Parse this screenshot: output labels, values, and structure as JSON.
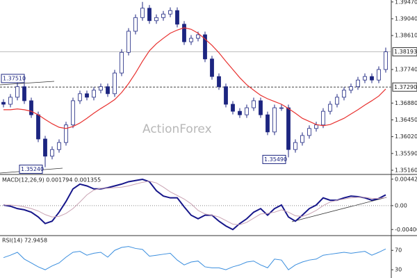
{
  "chart_data": [
    {
      "type": "candlestick",
      "watermark": "ActionForex",
      "color": "#1c2580",
      "open": [
        1.369,
        1.3685,
        1.3703,
        1.373,
        1.3694,
        1.3658,
        1.3596,
        1.3552,
        1.3569,
        1.3587,
        1.3632,
        1.3694,
        1.3712,
        1.3703,
        1.3721,
        1.373,
        1.3712,
        1.3765,
        1.3818,
        1.3872,
        1.3907,
        1.3931,
        1.3899,
        1.3907,
        1.3916,
        1.3925,
        1.389,
        1.3845,
        1.3854,
        1.3863,
        1.3801,
        1.3756,
        1.373,
        1.3685,
        1.3667,
        1.3658,
        1.3676,
        1.3694,
        1.3658,
        1.3614,
        1.3676,
        1.3676,
        1.3569,
        1.3587,
        1.3605,
        1.3623,
        1.3632,
        1.3667,
        1.3685,
        1.3703,
        1.3721,
        1.373,
        1.3747,
        1.3756,
        1.3747,
        1.3774
      ],
      "high": [
        1.3698,
        1.3711,
        1.3751,
        1.3738,
        1.3702,
        1.3666,
        1.3604,
        1.3577,
        1.3595,
        1.364,
        1.3702,
        1.372,
        1.372,
        1.3729,
        1.3738,
        1.3738,
        1.3773,
        1.3826,
        1.388,
        1.3915,
        1.3947,
        1.3939,
        1.3915,
        1.3924,
        1.3933,
        1.3933,
        1.3898,
        1.3862,
        1.3871,
        1.3871,
        1.3809,
        1.3764,
        1.3738,
        1.3693,
        1.3675,
        1.3684,
        1.3702,
        1.3702,
        1.3666,
        1.3684,
        1.3684,
        1.3684,
        1.3595,
        1.3613,
        1.3631,
        1.364,
        1.3675,
        1.3693,
        1.3711,
        1.3729,
        1.3738,
        1.3755,
        1.3764,
        1.3764,
        1.3782,
        1.383
      ],
      "low": [
        1.3677,
        1.3677,
        1.3695,
        1.3686,
        1.365,
        1.3588,
        1.3524,
        1.3544,
        1.3561,
        1.3579,
        1.3624,
        1.3686,
        1.3695,
        1.3695,
        1.3713,
        1.3704,
        1.3704,
        1.3757,
        1.381,
        1.3864,
        1.3899,
        1.3891,
        1.3891,
        1.3899,
        1.3908,
        1.3882,
        1.3837,
        1.3837,
        1.3846,
        1.3793,
        1.3748,
        1.3722,
        1.3677,
        1.3659,
        1.365,
        1.365,
        1.3668,
        1.365,
        1.3606,
        1.3606,
        1.3668,
        1.3549,
        1.3561,
        1.3579,
        1.3597,
        1.3615,
        1.3624,
        1.3659,
        1.3677,
        1.3695,
        1.3713,
        1.3722,
        1.3739,
        1.3739,
        1.3739,
        1.3766
      ],
      "close": [
        1.3685,
        1.3703,
        1.373,
        1.3694,
        1.3658,
        1.3596,
        1.3552,
        1.3569,
        1.3587,
        1.3632,
        1.3694,
        1.3712,
        1.3703,
        1.3721,
        1.373,
        1.3712,
        1.3765,
        1.3818,
        1.3872,
        1.3907,
        1.3931,
        1.3899,
        1.3907,
        1.3916,
        1.3925,
        1.389,
        1.3845,
        1.3854,
        1.3863,
        1.3801,
        1.3756,
        1.373,
        1.3685,
        1.3667,
        1.3658,
        1.3676,
        1.3694,
        1.3658,
        1.3614,
        1.3676,
        1.3676,
        1.3569,
        1.3587,
        1.3605,
        1.3623,
        1.3632,
        1.3667,
        1.3685,
        1.3703,
        1.3721,
        1.373,
        1.3747,
        1.3756,
        1.3747,
        1.3774,
        1.38193
      ],
      "ma": {
        "color": "#e8312f",
        "values": [
          1.3671,
          1.3671,
          1.3673,
          1.3671,
          1.3667,
          1.3658,
          1.3646,
          1.3635,
          1.3626,
          1.3623,
          1.3628,
          1.3637,
          1.3649,
          1.3662,
          1.3674,
          1.3685,
          1.3697,
          1.3715,
          1.3738,
          1.3765,
          1.3795,
          1.3822,
          1.384,
          1.3854,
          1.3867,
          1.3875,
          1.3881,
          1.3877,
          1.3867,
          1.3852,
          1.3836,
          1.3817,
          1.3795,
          1.3774,
          1.3753,
          1.3735,
          1.3721,
          1.3708,
          1.3699,
          1.3692,
          1.3685,
          1.3674,
          1.3662,
          1.3649,
          1.3641,
          1.3633,
          1.363,
          1.3633,
          1.3641,
          1.3649,
          1.366,
          1.3671,
          1.3683,
          1.3694,
          1.3706,
          1.3724
        ]
      },
      "ylim": [
        1.3507,
        1.3952
      ],
      "yticks": [
        {
          "value": 1.3947,
          "label": "1.39470"
        },
        {
          "value": 1.3904,
          "label": "1.39040"
        },
        {
          "value": 1.3861,
          "label": "1.38610"
        },
        {
          "value": 1.3774,
          "label": "1.37740"
        },
        {
          "value": 1.3688,
          "label": "1.36880"
        },
        {
          "value": 1.3645,
          "label": "1.36450"
        },
        {
          "value": 1.3602,
          "label": "1.36020"
        },
        {
          "value": 1.3559,
          "label": "1.35590"
        },
        {
          "value": 1.3516,
          "label": "1.35160"
        }
      ],
      "annotations": [
        {
          "value": 1.3751,
          "label": "1.37510"
        },
        {
          "value": 1.3524,
          "label": "1.35240"
        },
        {
          "value": 1.3549,
          "label": "1.35490"
        }
      ],
      "level": {
        "value": 1.3729,
        "label": "1.37290"
      },
      "last_price": {
        "value": 1.38193,
        "label": "1.38193"
      }
    },
    {
      "type": "line",
      "title": "MACD(12,26,9) 0.001794 0.001355",
      "series": [
        {
          "color": "#16168a",
          "values": [
            0.0001,
            -0.0001,
            -0.0005,
            -0.0007,
            -0.0011,
            -0.0019,
            -0.003,
            -0.0026,
            -0.0011,
            0.0007,
            0.0028,
            0.0036,
            0.0033,
            0.0028,
            0.0028,
            0.003,
            0.0033,
            0.0036,
            0.004,
            0.0042,
            0.0044,
            0.004,
            0.0025,
            0.0016,
            0.0013,
            0.0013,
            -0.0002,
            -0.0016,
            -0.0022,
            -0.0016,
            -0.0016,
            -0.0026,
            -0.0034,
            -0.004,
            -0.003,
            -0.0022,
            -0.0011,
            -0.0005,
            -0.0016,
            -0.0005,
            0.0001,
            -0.0019,
            -0.0026,
            -0.0016,
            -0.0005,
            0.0001,
            0.0013,
            0.0009,
            0.0009,
            0.0013,
            0.0016,
            0.0015,
            0.0013,
            0.0009,
            0.0012,
            0.001794
          ]
        },
        {
          "color": "#c9a3b3",
          "values": [
            0.0001,
            0.0001,
            0,
            -0.0002,
            -0.0005,
            -0.0009,
            -0.0015,
            -0.0019,
            -0.0018,
            -0.0013,
            -0.0005,
            0.0006,
            0.0018,
            0.0026,
            0.0029,
            0.0029,
            0.003,
            0.0031,
            0.0033,
            0.0036,
            0.0039,
            0.0041,
            0.0038,
            0.0031,
            0.0023,
            0.0017,
            0.0011,
            0.0003,
            -0.0008,
            -0.0014,
            -0.0016,
            -0.0019,
            -0.0025,
            -0.0031,
            -0.0032,
            -0.0028,
            -0.0021,
            -0.0014,
            -0.0013,
            -0.0011,
            -0.0007,
            -0.0011,
            -0.0017,
            -0.0018,
            -0.0014,
            -0.0008,
            0,
            0.0006,
            0.0009,
            0.0011,
            0.0013,
            0.0014,
            0.0014,
            0.0012,
            0.0012,
            0.001355
          ]
        }
      ],
      "ylim": [
        -0.0049,
        0.0051
      ],
      "yticks": [
        0.004421,
        {
          "value": 0,
          "label": "0.00"
        },
        -0.004001
      ],
      "zero_line": true
    },
    {
      "type": "line",
      "title": "RSI(14) 72.9458",
      "series": [
        {
          "color": "#3a8ede",
          "values": [
            55,
            60,
            66,
            52,
            44,
            36,
            30,
            38,
            44,
            56,
            66,
            68,
            60,
            64,
            66,
            56,
            70,
            76,
            78,
            74,
            72,
            58,
            60,
            62,
            64,
            50,
            40,
            46,
            48,
            36,
            34,
            34,
            30,
            36,
            40,
            46,
            48,
            40,
            34,
            52,
            50,
            30,
            40,
            46,
            50,
            52,
            60,
            62,
            64,
            66,
            64,
            66,
            68,
            60,
            66,
            72.9458
          ]
        }
      ],
      "ylim": [
        13,
        99
      ],
      "yticks": [
        70,
        30
      ]
    }
  ]
}
